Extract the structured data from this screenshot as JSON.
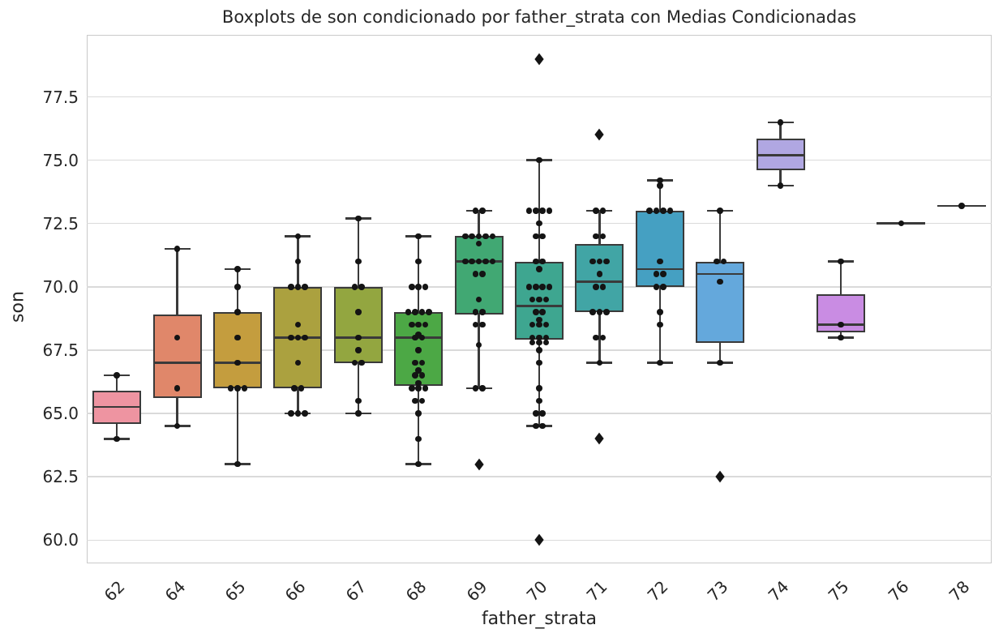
{
  "chart_data": {
    "type": "boxplot",
    "title": "Boxplots de son condicionado por father_strata con Medias Condicionadas",
    "xlabel": "father_strata",
    "ylabel": "son",
    "grid": true,
    "legend_position": "none",
    "outlier_marker": "diamond",
    "point_color": "#141414",
    "box_edge_color": "#3a3a3a",
    "ylim": [
      59.08,
      79.95
    ],
    "yticks": [
      {
        "value": 60.0,
        "label": "60.0"
      },
      {
        "value": 62.5,
        "label": "62.5"
      },
      {
        "value": 65.0,
        "label": "65.0"
      },
      {
        "value": 67.5,
        "label": "67.5"
      },
      {
        "value": 70.0,
        "label": "70.0"
      },
      {
        "value": 72.5,
        "label": "72.5"
      },
      {
        "value": 75.0,
        "label": "75.0"
      },
      {
        "value": 77.5,
        "label": "77.5"
      }
    ],
    "categories": [
      "62",
      "64",
      "65",
      "66",
      "67",
      "68",
      "69",
      "70",
      "71",
      "72",
      "73",
      "74",
      "75",
      "76",
      "78"
    ],
    "series": [
      {
        "category": "62",
        "color": "#ee94a1",
        "whisker_low": 64.0,
        "q1": 64.6,
        "median": 65.25,
        "q3": 65.9,
        "whisker_high": 66.5,
        "outliers": [],
        "points": [
          66.5,
          64.0
        ]
      },
      {
        "category": "64",
        "color": "#e0876a",
        "whisker_low": 64.5,
        "q1": 65.6,
        "median": 67.0,
        "q3": 68.9,
        "whisker_high": 71.5,
        "outliers": [],
        "points": [
          71.5,
          68.0,
          66.0,
          64.5
        ]
      },
      {
        "category": "65",
        "color": "#c49d3e",
        "whisker_low": 63.0,
        "q1": 66.0,
        "median": 67.0,
        "q3": 69.0,
        "whisker_high": 70.7,
        "outliers": [],
        "points": [
          70.7,
          70.0,
          69.0,
          68.0,
          67.0,
          66.0,
          66.0,
          66.0,
          63.0
        ]
      },
      {
        "category": "66",
        "color": "#aba13f",
        "whisker_low": 65.0,
        "q1": 66.0,
        "median": 68.0,
        "q3": 70.0,
        "whisker_high": 72.0,
        "outliers": [],
        "points": [
          72.0,
          71.0,
          70.0,
          70.0,
          70.0,
          68.5,
          68.0,
          68.0,
          68.0,
          67.0,
          66.0,
          66.0,
          65.0,
          65.0,
          65.0
        ]
      },
      {
        "category": "67",
        "color": "#93a640",
        "whisker_low": 65.0,
        "q1": 67.0,
        "median": 68.0,
        "q3": 70.0,
        "whisker_high": 72.7,
        "outliers": [],
        "points": [
          72.7,
          71.0,
          70.0,
          70.0,
          69.0,
          68.0,
          67.5,
          67.0,
          67.0,
          65.5,
          65.0
        ]
      },
      {
        "category": "68",
        "color": "#4ca845",
        "whisker_low": 63.0,
        "q1": 66.1,
        "median": 68.0,
        "q3": 69.0,
        "whisker_high": 72.0,
        "outliers": [],
        "points": [
          72.0,
          71.0,
          70.0,
          70.0,
          70.0,
          69.0,
          69.0,
          69.0,
          69.0,
          68.5,
          68.5,
          68.5,
          68.1,
          68.0,
          68.0,
          67.5,
          67.0,
          67.0,
          66.7,
          66.5,
          66.5,
          66.2,
          66.0,
          66.0,
          66.0,
          65.5,
          65.5,
          65.0,
          64.0,
          63.0
        ]
      },
      {
        "category": "69",
        "color": "#41a873",
        "whisker_low": 66.0,
        "q1": 68.9,
        "median": 71.0,
        "q3": 72.0,
        "whisker_high": 73.0,
        "outliers": [
          63.0
        ],
        "points": [
          73.0,
          73.0,
          72.0,
          72.0,
          72.0,
          72.0,
          72.0,
          71.7,
          71.0,
          71.0,
          71.0,
          71.0,
          71.0,
          70.5,
          70.5,
          69.5,
          69.0,
          69.0,
          68.5,
          68.5,
          67.7,
          66.0,
          66.0
        ]
      },
      {
        "category": "70",
        "color": "#3ea690",
        "whisker_low": 64.5,
        "q1": 67.9,
        "median": 69.25,
        "q3": 71.0,
        "whisker_high": 75.0,
        "outliers": [
          79.0,
          60.0
        ],
        "points": [
          75.0,
          73.0,
          73.0,
          73.0,
          73.0,
          72.5,
          72.0,
          72.0,
          71.0,
          71.0,
          70.7,
          70.0,
          70.0,
          70.0,
          70.0,
          69.5,
          69.5,
          69.5,
          69.0,
          69.0,
          68.7,
          68.5,
          68.5,
          68.5,
          68.0,
          68.0,
          68.0,
          67.8,
          67.8,
          67.8,
          67.5,
          67.0,
          66.0,
          65.5,
          65.0,
          65.0,
          64.5,
          64.5
        ]
      },
      {
        "category": "71",
        "color": "#41a5a5",
        "whisker_low": 67.0,
        "q1": 69.0,
        "median": 70.2,
        "q3": 71.7,
        "whisker_high": 73.0,
        "outliers": [
          76.0,
          64.0
        ],
        "points": [
          73.0,
          73.0,
          72.0,
          72.0,
          71.0,
          71.0,
          71.0,
          70.5,
          70.0,
          70.0,
          69.0,
          69.0,
          69.0,
          68.0,
          68.0,
          67.0
        ]
      },
      {
        "category": "72",
        "color": "#45a0c2",
        "whisker_low": 67.0,
        "q1": 70.0,
        "median": 70.7,
        "q3": 73.0,
        "whisker_high": 74.2,
        "outliers": [],
        "points": [
          74.2,
          74.0,
          73.0,
          73.0,
          73.0,
          73.0,
          71.0,
          70.5,
          70.5,
          70.0,
          70.0,
          69.0,
          68.5,
          67.0
        ]
      },
      {
        "category": "73",
        "color": "#64a8dc",
        "whisker_low": 67.0,
        "q1": 67.8,
        "median": 70.5,
        "q3": 71.0,
        "whisker_high": 73.0,
        "outliers": [
          62.5
        ],
        "points": [
          73.0,
          71.0,
          71.0,
          70.2,
          67.0
        ]
      },
      {
        "category": "74",
        "color": "#b0a7e2",
        "whisker_low": 74.0,
        "q1": 74.6,
        "median": 75.2,
        "q3": 75.85,
        "whisker_high": 76.5,
        "outliers": [],
        "points": [
          76.5,
          74.0
        ]
      },
      {
        "category": "75",
        "color": "#c98ce3",
        "whisker_low": 68.0,
        "q1": 68.2,
        "median": 68.5,
        "q3": 69.7,
        "whisker_high": 71.0,
        "outliers": [],
        "points": [
          71.0,
          68.5,
          68.0
        ]
      },
      {
        "category": "76",
        "color": "#e08ad5",
        "whisker_low": 72.5,
        "q1": 72.5,
        "median": 72.5,
        "q3": 72.5,
        "whisker_high": 72.5,
        "outliers": [],
        "points": [
          72.5
        ]
      },
      {
        "category": "78",
        "color": "#ef8fb5",
        "whisker_low": 73.2,
        "q1": 73.2,
        "median": 73.2,
        "q3": 73.2,
        "whisker_high": 73.2,
        "outliers": [],
        "points": [
          73.2
        ]
      }
    ]
  }
}
